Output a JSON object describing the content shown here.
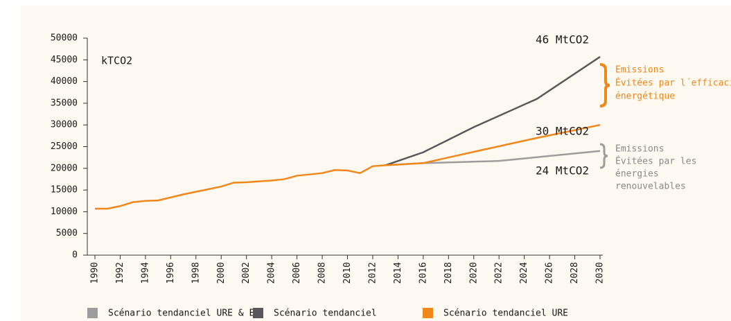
{
  "chart_data": {
    "type": "line",
    "ylabel": "kTCO2",
    "xlim": [
      1990,
      2030
    ],
    "xticks": [
      1990,
      1992,
      1994,
      1996,
      1998,
      2000,
      2002,
      2004,
      2006,
      2008,
      2010,
      2012,
      2014,
      2016,
      2018,
      2020,
      2022,
      2024,
      2026,
      2028,
      2030
    ],
    "ylim": [
      0,
      50000
    ],
    "yticks": [
      0,
      5000,
      10000,
      15000,
      20000,
      25000,
      30000,
      35000,
      40000,
      45000,
      50000
    ],
    "series": [
      {
        "name": "Scénario tendanciel URE & ER",
        "color": "#9d9d9d",
        "x": [
          2013,
          2016,
          2022,
          2030
        ],
        "values": [
          20700,
          21200,
          21700,
          24000
        ]
      },
      {
        "name": "Scénario tendanciel",
        "color": "#58585a",
        "x": [
          2013,
          2016,
          2020,
          2025,
          2030
        ],
        "values": [
          20700,
          23700,
          29500,
          36000,
          45700
        ]
      },
      {
        "name": "Scénario tendanciel URE",
        "color": "#f0871a",
        "x": [
          1990,
          1991,
          1992,
          1993,
          1994,
          1995,
          1996,
          1997,
          1998,
          1999,
          2000,
          2001,
          2002,
          2003,
          2004,
          2005,
          2006,
          2007,
          2008,
          2009,
          2010,
          2011,
          2012,
          2013,
          2016,
          2020,
          2025,
          2030
        ],
        "values": [
          10700,
          10700,
          11300,
          12200,
          12500,
          12600,
          13300,
          14000,
          14600,
          15200,
          15800,
          16700,
          16800,
          17000,
          17200,
          17500,
          18300,
          18600,
          18900,
          19600,
          19500,
          18900,
          20500,
          20700,
          21200,
          23800,
          27000,
          30000
        ]
      }
    ],
    "annotations": {
      "totals": [
        "46 MtCO2",
        "30 MtCO2",
        "24 MtCO2"
      ],
      "efficiency": [
        "Emissions",
        "Évitées par l´efficacité",
        "énergétique"
      ],
      "renewables": [
        "Emissions",
        "Évitées par les",
        "énergies",
        "renouvelables"
      ]
    }
  }
}
